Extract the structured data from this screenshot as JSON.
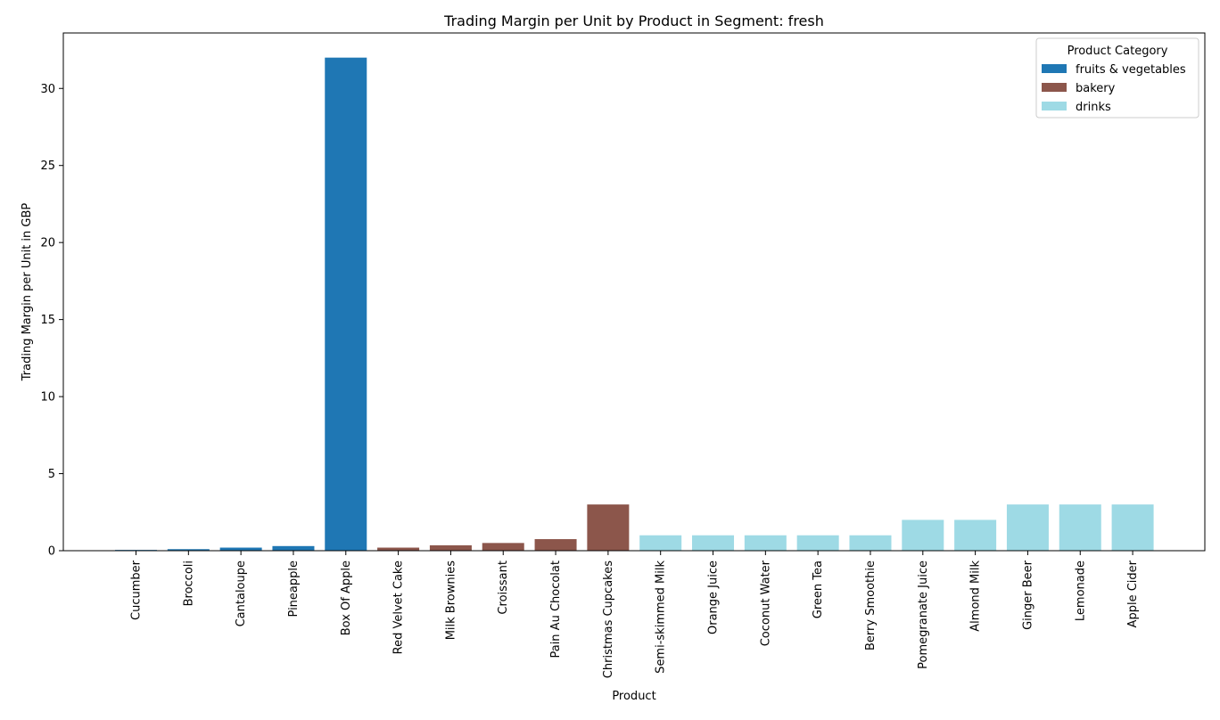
{
  "chart_data": {
    "type": "bar",
    "title": "Trading Margin per Unit by Product in Segment: fresh",
    "xlabel": "Product",
    "ylabel": "Trading Margin per Unit in GBP",
    "ylim": [
      0,
      33.6
    ],
    "yticks": [
      0,
      5,
      10,
      15,
      20,
      25,
      30
    ],
    "grid": false,
    "legend": {
      "title": "Product Category",
      "placement": "top-right",
      "entries": [
        {
          "name": "fruits & vegetables",
          "color": "#1f77b4"
        },
        {
          "name": "bakery",
          "color": "#8c564b"
        },
        {
          "name": "drinks",
          "color": "#9edae5"
        }
      ]
    },
    "categories": [
      "Cucumber",
      "Broccoli",
      "Cantaloupe",
      "Pineapple",
      "Box Of Apple",
      "Red Velvet Cake",
      "Milk Brownies",
      "Croissant",
      "Pain Au Chocolat",
      "Christmas Cupcakes",
      "Semi-skimmed Milk",
      "Orange Juice",
      "Coconut Water",
      "Green Tea",
      "Berry Smoothie",
      "Pomegranate Juice",
      "Almond Milk",
      "Ginger Beer",
      "Lemonade",
      "Apple Cider"
    ],
    "values": [
      0.05,
      0.1,
      0.2,
      0.3,
      32,
      0.2,
      0.35,
      0.5,
      0.75,
      3,
      1,
      1,
      1,
      1,
      1,
      2,
      2,
      3,
      3,
      3
    ],
    "bar_category": [
      "fruits & vegetables",
      "fruits & vegetables",
      "fruits & vegetables",
      "fruits & vegetables",
      "fruits & vegetables",
      "bakery",
      "bakery",
      "bakery",
      "bakery",
      "bakery",
      "drinks",
      "drinks",
      "drinks",
      "drinks",
      "drinks",
      "drinks",
      "drinks",
      "drinks",
      "drinks",
      "drinks"
    ]
  }
}
